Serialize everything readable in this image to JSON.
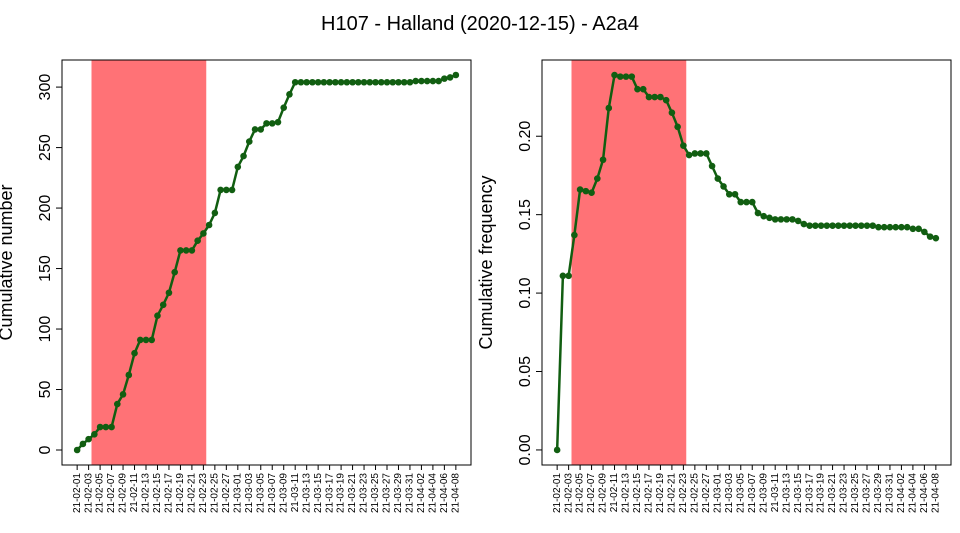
{
  "title": "H107 - Halland (2020-12-15) - A2a4",
  "chart_data": [
    {
      "type": "line",
      "y_label": "Cumulative number",
      "color": "#115e11",
      "highlight": {
        "from": 3,
        "to": 22,
        "color": "#ff7276"
      },
      "categories": [
        "21-02-01",
        null,
        "21-02-03",
        null,
        "21-02-05",
        null,
        "21-02-07",
        null,
        "21-02-09",
        null,
        "21-02-11",
        null,
        "21-02-13",
        null,
        "21-02-15",
        null,
        "21-02-17",
        null,
        "21-02-19",
        null,
        "21-02-21",
        null,
        "21-02-23",
        null,
        "21-02-25",
        null,
        "21-02-27",
        null,
        "21-03-01",
        null,
        "21-03-03",
        null,
        "21-03-05",
        null,
        "21-03-07",
        null,
        "21-03-09",
        null,
        "21-03-11",
        null,
        "21-03-13",
        null,
        "21-03-15",
        null,
        "21-03-17",
        null,
        "21-03-19",
        null,
        "21-03-21",
        null,
        "21-03-23",
        null,
        "21-03-25",
        null,
        "21-03-27",
        null,
        "21-03-29",
        null,
        "21-03-31",
        null,
        "21-04-02",
        null,
        "21-04-04",
        null,
        "21-04-06",
        null,
        "21-04-08"
      ],
      "values": [
        0,
        5,
        9,
        13,
        19,
        19,
        19,
        38,
        46,
        62,
        80,
        91,
        91,
        91,
        111,
        120,
        130,
        147,
        165,
        165,
        165,
        173,
        179,
        186,
        196,
        215,
        215,
        215,
        234,
        243,
        255,
        265,
        265,
        270,
        270,
        271,
        283,
        294,
        304,
        304,
        304,
        304,
        304,
        304,
        304,
        304,
        304,
        304,
        304,
        304,
        304,
        304,
        304,
        304,
        304,
        304,
        304,
        304,
        304,
        305,
        305,
        305,
        305,
        305,
        307,
        308,
        310
      ],
      "ylim": [
        -12.4,
        322.4
      ],
      "yticks": [
        0,
        50,
        100,
        150,
        200,
        250,
        300
      ]
    },
    {
      "type": "line",
      "y_label": "Cumulative frequency",
      "color": "#115e11",
      "highlight": {
        "from": 3,
        "to": 22,
        "color": "#ff7276"
      },
      "categories": [
        "21-02-01",
        null,
        "21-02-03",
        null,
        "21-02-05",
        null,
        "21-02-07",
        null,
        "21-02-09",
        null,
        "21-02-11",
        null,
        "21-02-13",
        null,
        "21-02-15",
        null,
        "21-02-17",
        null,
        "21-02-19",
        null,
        "21-02-21",
        null,
        "21-02-23",
        null,
        "21-02-25",
        null,
        "21-02-27",
        null,
        "21-03-01",
        null,
        "21-03-03",
        null,
        "21-03-05",
        null,
        "21-03-07",
        null,
        "21-03-09",
        null,
        "21-03-11",
        null,
        "21-03-13",
        null,
        "21-03-15",
        null,
        "21-03-17",
        null,
        "21-03-19",
        null,
        "21-03-21",
        null,
        "21-03-23",
        null,
        "21-03-25",
        null,
        "21-03-27",
        null,
        "21-03-29",
        null,
        "21-03-31",
        null,
        "21-04-02",
        null,
        "21-04-04",
        null,
        "21-04-06",
        null,
        "21-04-08"
      ],
      "values": [
        0,
        0.111,
        0.111,
        0.137,
        0.166,
        0.165,
        0.164,
        0.173,
        0.185,
        0.218,
        0.239,
        0.238,
        0.238,
        0.238,
        0.23,
        0.23,
        0.225,
        0.225,
        0.225,
        0.223,
        0.215,
        0.206,
        0.194,
        0.188,
        0.189,
        0.189,
        0.189,
        0.181,
        0.173,
        0.168,
        0.163,
        0.163,
        0.158,
        0.158,
        0.158,
        0.151,
        0.149,
        0.148,
        0.147,
        0.147,
        0.147,
        0.147,
        0.146,
        0.144,
        0.143,
        0.143,
        0.143,
        0.143,
        0.143,
        0.143,
        0.143,
        0.143,
        0.143,
        0.143,
        0.143,
        0.143,
        0.142,
        0.142,
        0.142,
        0.142,
        0.142,
        0.142,
        0.141,
        0.141,
        0.139,
        0.136,
        0.135
      ],
      "ylim": [
        -0.0096,
        0.2486
      ],
      "yticks": [
        {
          "value": 0,
          "label": "0.00"
        },
        {
          "value": 0.05,
          "label": "0.05"
        },
        {
          "value": 0.1,
          "label": "0.10"
        },
        {
          "value": 0.15,
          "label": "0.15"
        },
        {
          "value": 0.2,
          "label": "0.20"
        }
      ]
    }
  ]
}
